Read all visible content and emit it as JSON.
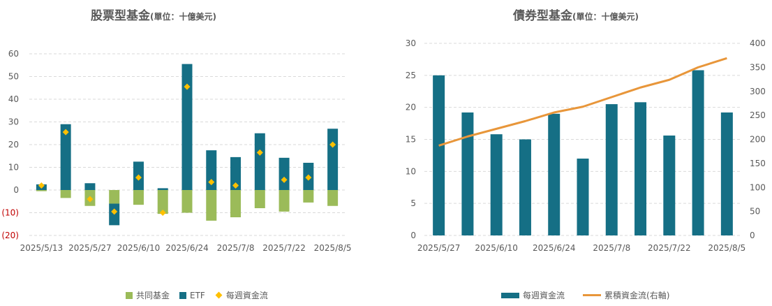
{
  "chart_data": [
    {
      "type": "bar",
      "title": "股票型基金",
      "subtitle": "(單位：十億美元)",
      "ylim": [
        -20,
        60
      ],
      "yticks": [
        60,
        50,
        40,
        30,
        20,
        10,
        0,
        -10,
        -20
      ],
      "ytick_labels": [
        "60",
        "50",
        "40",
        "30",
        "20",
        "10",
        "0",
        "(10)",
        "(20)"
      ],
      "negative_tick_color": "#c00000",
      "grid": true,
      "legend_position": "bottom",
      "categories": [
        "2025/5/13",
        "2025/5/20",
        "2025/5/27",
        "2025/6/3",
        "2025/6/10",
        "2025/6/17",
        "2025/6/24",
        "2025/7/1",
        "2025/7/8",
        "2025/7/15",
        "2025/7/22",
        "2025/7/29",
        "2025/8/5"
      ],
      "xtick_labels": [
        "2025/5/13",
        "",
        "2025/5/27",
        "",
        "2025/6/10",
        "",
        "2025/6/24",
        "",
        "2025/7/8",
        "",
        "2025/7/22",
        "",
        "2025/8/5"
      ],
      "series": [
        {
          "name": "共同基金",
          "kind": "stacked-bar",
          "color": "#9bbb59",
          "values": [
            -0.5,
            -3.5,
            -7,
            -6,
            -6.5,
            -10.5,
            -10,
            -13.5,
            -12,
            -8,
            -9.5,
            -5.5,
            -7
          ]
        },
        {
          "name": "ETF",
          "kind": "stacked-bar",
          "color": "#156f85",
          "values": [
            2.5,
            29,
            3,
            -9.5,
            12.5,
            0.8,
            55.5,
            17.5,
            14.5,
            25,
            14.2,
            12,
            27
          ]
        },
        {
          "name": "每週資金流",
          "kind": "marker",
          "color": "#ffc000",
          "values": [
            2,
            25.5,
            -4,
            -9.5,
            5.5,
            -10,
            45.5,
            3.5,
            2,
            16.5,
            4.5,
            5.5,
            20
          ]
        }
      ]
    },
    {
      "type": "bar",
      "title": "債券型基金",
      "subtitle": "(單位：十億美元)",
      "ylim": [
        0,
        30
      ],
      "yticks": [
        0,
        5,
        10,
        15,
        20,
        25,
        30
      ],
      "y2lim": [
        0,
        400
      ],
      "y2ticks": [
        0,
        50,
        100,
        150,
        200,
        250,
        300,
        350,
        400
      ],
      "grid": true,
      "legend_position": "bottom",
      "categories": [
        "2025/5/27",
        "2025/6/3",
        "2025/6/10",
        "2025/6/17",
        "2025/6/24",
        "2025/7/1",
        "2025/7/8",
        "2025/7/15",
        "2025/7/22",
        "2025/7/29",
        "2025/8/5"
      ],
      "xtick_labels": [
        "2025/5/27",
        "",
        "2025/6/10",
        "",
        "2025/6/24",
        "",
        "2025/7/8",
        "",
        "2025/7/22",
        "",
        "2025/8/5"
      ],
      "series": [
        {
          "name": "每週資金流",
          "kind": "bar",
          "axis": "left",
          "color": "#156f85",
          "values": [
            25,
            19.2,
            15.8,
            15,
            19,
            12,
            20.5,
            20.8,
            15.6,
            25.8,
            19.2
          ]
        },
        {
          "name": "累積資金流(右軸)",
          "kind": "line",
          "axis": "right",
          "color": "#e8963a",
          "values": [
            187,
            206,
            222,
            238,
            256,
            268,
            288,
            308,
            324,
            350,
            369
          ]
        }
      ]
    }
  ]
}
